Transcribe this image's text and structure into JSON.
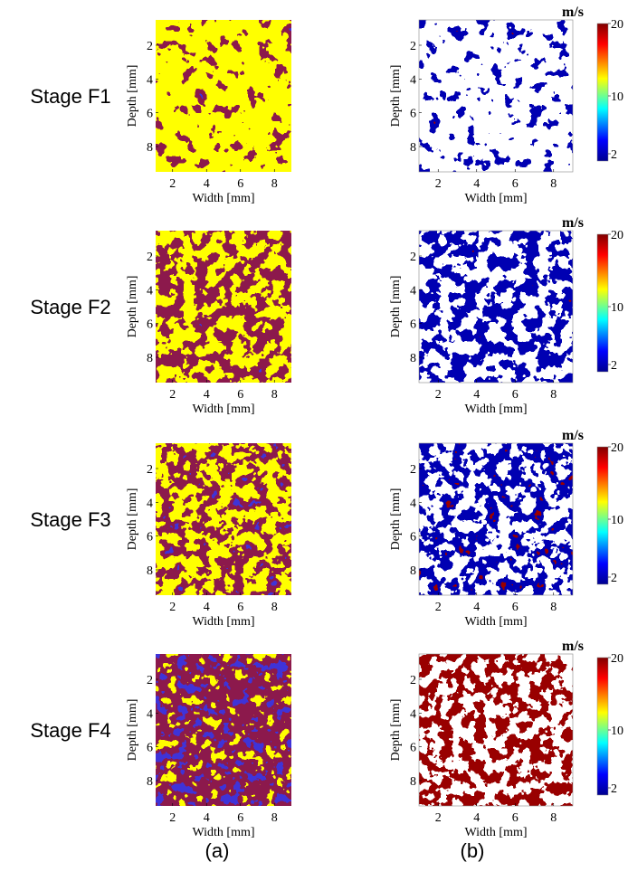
{
  "panels": [
    {
      "stage": "Stage F1"
    },
    {
      "stage": "Stage F2"
    },
    {
      "stage": "Stage F3"
    },
    {
      "stage": "Stage F4"
    }
  ],
  "axes": {
    "xlabel": "Width [mm]",
    "ylabel": "Depth [mm]",
    "xticks": [
      2,
      4,
      6,
      8
    ],
    "yticks": [
      2,
      4,
      6,
      8
    ],
    "xlim": [
      1,
      9
    ],
    "ylim": [
      0.5,
      9.5
    ]
  },
  "colorbar": {
    "unit": "m/s",
    "ticks": [
      2,
      10,
      20
    ],
    "lim": [
      1,
      20
    ]
  },
  "captions": [
    "(a)",
    "(b)"
  ]
}
